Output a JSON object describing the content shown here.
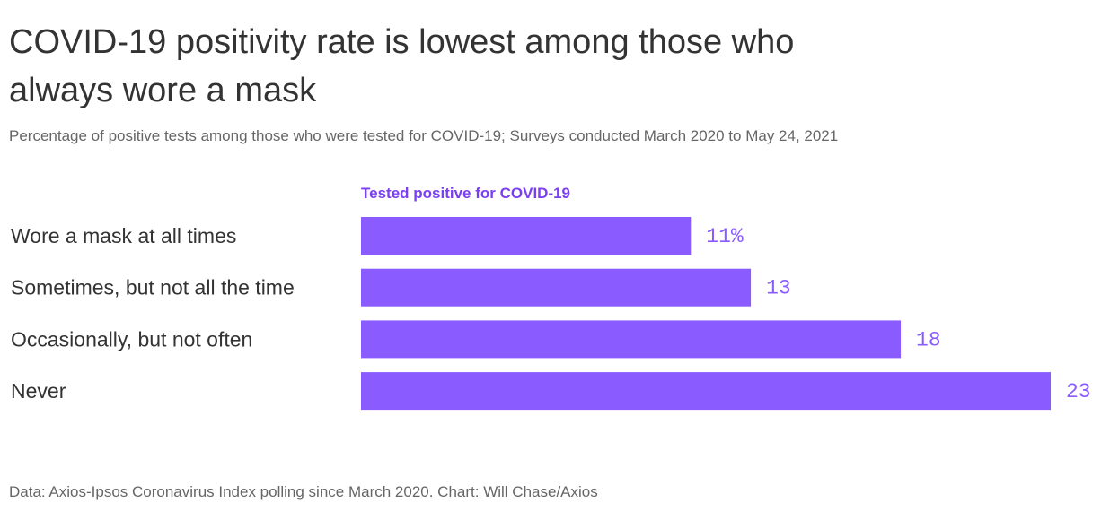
{
  "title": "COVID-19 positivity rate is lowest among those who always wore a mask",
  "subtitle": "Percentage of positive tests among those who were tested for COVID-19; Surveys conducted March 2020 to May 24, 2021",
  "source": "Data: Axios-Ipsos Coronavirus Index polling since March 2020. Chart: Will Chase/Axios",
  "colors": {
    "bar": "#8a5cff",
    "value_text": "#8a5cff",
    "legend_text": "#7b3ff2"
  },
  "chart_data": {
    "type": "bar",
    "orientation": "horizontal",
    "series": [
      {
        "name": "Tested positive for COVID-19",
        "values": [
          11,
          13,
          18,
          23
        ]
      }
    ],
    "categories": [
      "Wore a mask at all times",
      "Sometimes, but not all the time",
      "Occasionally, but not often",
      "Never"
    ],
    "value_labels": [
      "11%",
      "13",
      "18",
      "23"
    ],
    "xlim": [
      0,
      23
    ],
    "grid": false,
    "legend_position": "top"
  }
}
